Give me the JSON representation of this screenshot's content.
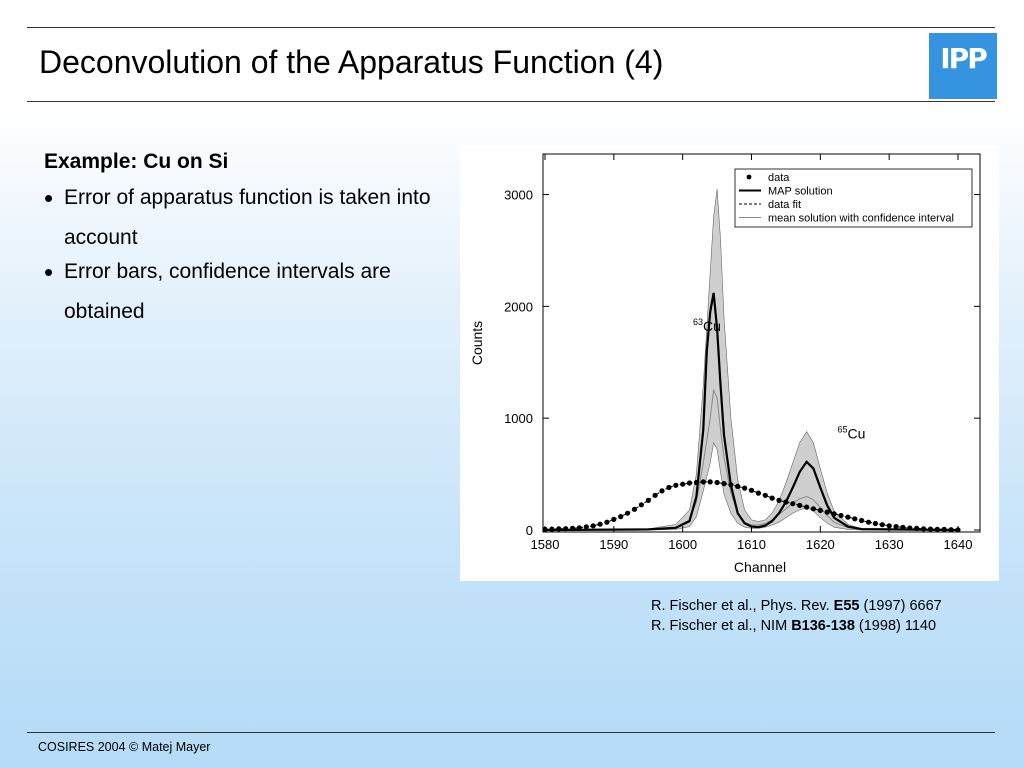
{
  "slide": {
    "title": "Deconvolution of the Apparatus Function (4)",
    "logo_text": "IPP",
    "logo_color": "#3593e0",
    "section_heading": "Example: Cu on Si",
    "bullets": [
      "Error of apparatus function is taken into account",
      "Error bars, confidence intervals are obtained"
    ],
    "references": [
      {
        "before": "R. Fischer et al., Phys. Rev. ",
        "bold": "E55",
        "after": " (1997) 6667"
      },
      {
        "before": "R. Fischer et al., NIM ",
        "bold": "B136-138",
        "after": " (1998) 1140"
      }
    ],
    "footer": "COSIRES 2004 © Matej Mayer"
  },
  "chart_data": {
    "type": "line",
    "xlabel": "Channel",
    "ylabel": "Counts",
    "xlim": [
      1580,
      1640
    ],
    "ylim": [
      0,
      3300
    ],
    "x_ticks": [
      1580,
      1590,
      1600,
      1610,
      1620,
      1630,
      1640
    ],
    "y_ticks": [
      0,
      1000,
      2000,
      3000
    ],
    "grid": false,
    "legend_position": "top-right",
    "legend": [
      "data",
      "MAP solution",
      "data fit",
      "mean solution with confidence interval"
    ],
    "annotations": [
      {
        "mass": "63",
        "element": "Cu",
        "x": 1601.5,
        "y": 1780
      },
      {
        "mass": "65",
        "element": "Cu",
        "x": 1622.5,
        "y": 820
      }
    ],
    "series": [
      {
        "name": "data",
        "style": "points",
        "x": [
          1580,
          1581,
          1582,
          1583,
          1584,
          1585,
          1586,
          1587,
          1588,
          1589,
          1590,
          1591,
          1592,
          1593,
          1594,
          1595,
          1596,
          1597,
          1598,
          1599,
          1600,
          1601,
          1602,
          1603,
          1604,
          1605,
          1606,
          1607,
          1608,
          1609,
          1610,
          1611,
          1612,
          1613,
          1614,
          1615,
          1616,
          1617,
          1618,
          1619,
          1620,
          1621,
          1622,
          1623,
          1624,
          1625,
          1626,
          1627,
          1628,
          1629,
          1630,
          1631,
          1632,
          1633,
          1634,
          1635,
          1636,
          1637,
          1638,
          1639,
          1640
        ],
        "y": [
          5,
          8,
          10,
          12,
          15,
          20,
          28,
          38,
          52,
          70,
          95,
          120,
          150,
          185,
          225,
          265,
          310,
          350,
          380,
          400,
          410,
          420,
          425,
          430,
          430,
          425,
          415,
          405,
          390,
          375,
          355,
          330,
          310,
          285,
          265,
          250,
          235,
          220,
          205,
          190,
          175,
          160,
          145,
          130,
          115,
          100,
          85,
          70,
          58,
          47,
          38,
          30,
          23,
          18,
          14,
          10,
          8,
          6,
          5,
          3,
          2
        ]
      },
      {
        "name": "MAP solution",
        "style": "solid",
        "x": [
          1580,
          1595,
          1599,
          1601,
          1602,
          1603,
          1603.5,
          1604,
          1604.5,
          1605,
          1605.5,
          1606,
          1607,
          1608,
          1609,
          1610,
          1611,
          1612,
          1613,
          1614,
          1615,
          1616,
          1617,
          1618,
          1619,
          1620,
          1621,
          1622,
          1624,
          1626,
          1640
        ],
        "y": [
          0,
          5,
          20,
          80,
          300,
          900,
          1600,
          1950,
          2120,
          1800,
          1300,
          850,
          400,
          150,
          60,
          30,
          25,
          40,
          80,
          150,
          250,
          380,
          520,
          610,
          550,
          380,
          220,
          110,
          30,
          8,
          0
        ],
        "color": "#000"
      },
      {
        "name": "data fit",
        "style": "dashed",
        "x": [
          1580,
          1581,
          1582,
          1583,
          1584,
          1585,
          1586,
          1587,
          1588,
          1589,
          1590,
          1591,
          1592,
          1593,
          1594,
          1595,
          1596,
          1597,
          1598,
          1599,
          1600,
          1601,
          1602,
          1603,
          1604,
          1605,
          1606,
          1607,
          1608,
          1609,
          1610,
          1611,
          1612,
          1613,
          1614,
          1615,
          1616,
          1617,
          1618,
          1619,
          1620,
          1621,
          1622,
          1623,
          1624,
          1625,
          1626,
          1627,
          1628,
          1629,
          1630,
          1631,
          1632,
          1633,
          1634,
          1635,
          1636,
          1637,
          1638,
          1639,
          1640
        ],
        "y": [
          5,
          8,
          10,
          12,
          15,
          20,
          28,
          38,
          52,
          70,
          95,
          120,
          150,
          185,
          225,
          265,
          310,
          350,
          380,
          400,
          410,
          420,
          425,
          430,
          430,
          425,
          415,
          405,
          390,
          375,
          355,
          330,
          310,
          285,
          265,
          250,
          235,
          220,
          205,
          190,
          175,
          160,
          145,
          130,
          115,
          100,
          85,
          70,
          58,
          47,
          38,
          30,
          23,
          18,
          14,
          10,
          8,
          6,
          5,
          3,
          2
        ],
        "color": "#000"
      },
      {
        "name": "mean solution with confidence interval",
        "style": "thin",
        "x": [
          1580,
          1595,
          1599,
          1601,
          1602,
          1603,
          1604,
          1604.5,
          1605,
          1605.5,
          1606,
          1607,
          1608,
          1609,
          1610,
          1611,
          1612,
          1613,
          1614,
          1615,
          1616,
          1617,
          1618,
          1619,
          1620,
          1621,
          1622,
          1624,
          1626,
          1640
        ],
        "y": [
          0,
          5,
          25,
          90,
          250,
          600,
          1000,
          1250,
          1180,
          900,
          650,
          330,
          150,
          70,
          45,
          45,
          60,
          90,
          140,
          190,
          240,
          280,
          300,
          270,
          200,
          130,
          70,
          20,
          6,
          0
        ],
        "upper": [
          0,
          10,
          50,
          180,
          500,
          1300,
          2300,
          2800,
          3050,
          2600,
          1900,
          1000,
          450,
          180,
          90,
          75,
          90,
          150,
          260,
          420,
          600,
          780,
          880,
          780,
          550,
          330,
          170,
          50,
          12,
          0
        ],
        "lower": [
          0,
          0,
          5,
          30,
          120,
          350,
          600,
          780,
          720,
          520,
          320,
          150,
          60,
          25,
          15,
          15,
          25,
          45,
          70,
          110,
          150,
          180,
          200,
          170,
          110,
          60,
          25,
          5,
          0,
          0
        ],
        "color": "#888",
        "band_color": "#cfcfcf"
      }
    ]
  }
}
